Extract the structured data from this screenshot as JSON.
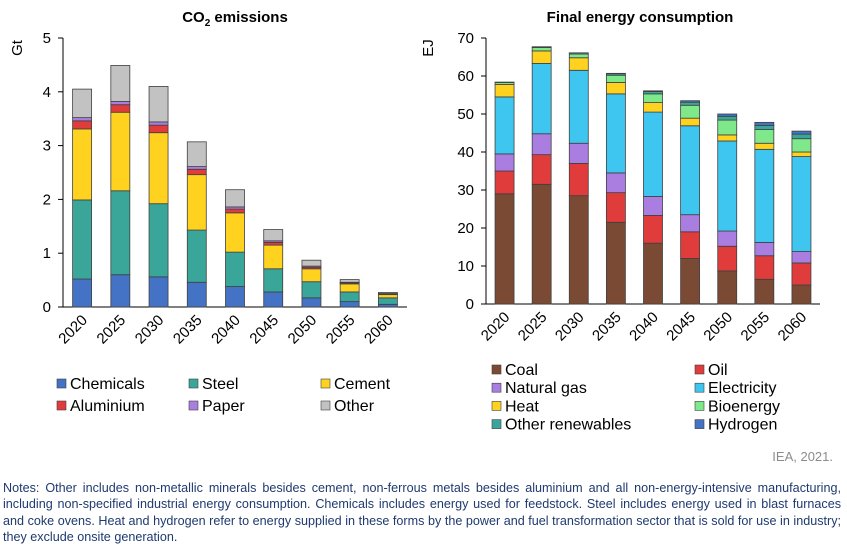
{
  "chart_data": [
    {
      "type": "bar",
      "stacked": true,
      "title": "CO",
      "title_subscript": "2",
      "title_suffix": " emissions",
      "ylabel": "Gt",
      "ylim": [
        0,
        5
      ],
      "yticks": [
        0,
        1,
        2,
        3,
        4,
        5
      ],
      "categories": [
        "2020",
        "2025",
        "2030",
        "2035",
        "2040",
        "2045",
        "2050",
        "2055",
        "2060"
      ],
      "series": [
        {
          "name": "Chemicals",
          "color": "#4472c4",
          "values": [
            0.52,
            0.6,
            0.56,
            0.46,
            0.38,
            0.28,
            0.17,
            0.1,
            0.05
          ]
        },
        {
          "name": "Steel",
          "color": "#3aa69a",
          "values": [
            1.47,
            1.56,
            1.36,
            0.97,
            0.64,
            0.43,
            0.3,
            0.18,
            0.12
          ]
        },
        {
          "name": "Cement",
          "color": "#ffd21f",
          "values": [
            1.32,
            1.46,
            1.32,
            1.03,
            0.73,
            0.44,
            0.24,
            0.15,
            0.06
          ]
        },
        {
          "name": "Aluminium",
          "color": "#e03c3c",
          "values": [
            0.15,
            0.14,
            0.14,
            0.1,
            0.07,
            0.05,
            0.03,
            0.02,
            0.01
          ]
        },
        {
          "name": "Paper",
          "color": "#a97ee0",
          "values": [
            0.06,
            0.06,
            0.06,
            0.05,
            0.04,
            0.03,
            0.02,
            0.01,
            0.01
          ]
        },
        {
          "name": "Other",
          "color": "#c2c2c2",
          "values": [
            0.53,
            0.67,
            0.66,
            0.46,
            0.32,
            0.21,
            0.11,
            0.05,
            0.02
          ]
        }
      ],
      "legend_columns": 3,
      "legend_order": [
        "Chemicals",
        "Steel",
        "Cement",
        "Aluminium",
        "Paper",
        "Other"
      ]
    },
    {
      "type": "bar",
      "stacked": true,
      "title": "Final energy consumption",
      "ylabel": "EJ",
      "ylim": [
        0,
        70
      ],
      "yticks": [
        0,
        10,
        20,
        30,
        40,
        50,
        60,
        70
      ],
      "categories": [
        "2020",
        "2025",
        "2030",
        "2035",
        "2040",
        "2045",
        "2050",
        "2055",
        "2060"
      ],
      "series": [
        {
          "name": "Coal",
          "color": "#7b4a34",
          "values": [
            29.0,
            31.5,
            28.5,
            21.5,
            16.0,
            12.0,
            8.7,
            6.5,
            5.0
          ]
        },
        {
          "name": "Oil",
          "color": "#e03c3c",
          "values": [
            6.0,
            7.8,
            8.5,
            7.8,
            7.3,
            7.0,
            6.5,
            6.2,
            5.8
          ]
        },
        {
          "name": "Natural gas",
          "color": "#a97ee0",
          "values": [
            4.5,
            5.5,
            5.3,
            5.2,
            5.0,
            4.5,
            4.0,
            3.5,
            3.0
          ]
        },
        {
          "name": "Electricity",
          "color": "#3fc6f0",
          "values": [
            15.0,
            18.5,
            19.2,
            20.8,
            22.2,
            23.4,
            23.7,
            24.5,
            25.0
          ]
        },
        {
          "name": "Heat",
          "color": "#ffd21f",
          "values": [
            3.3,
            3.3,
            3.3,
            3.0,
            2.5,
            2.0,
            1.6,
            1.6,
            1.2
          ]
        },
        {
          "name": "Bioenergy",
          "color": "#7ee88a",
          "values": [
            0.5,
            0.9,
            1.0,
            1.9,
            2.3,
            3.4,
            3.9,
            3.6,
            3.5
          ]
        },
        {
          "name": "Other renewables",
          "color": "#3aa69a",
          "values": [
            0.1,
            0.2,
            0.3,
            0.4,
            0.6,
            0.8,
            1.0,
            1.1,
            1.2
          ]
        },
        {
          "name": "Hydrogen",
          "color": "#4472c4",
          "values": [
            0.0,
            0.0,
            0.0,
            0.1,
            0.2,
            0.4,
            0.6,
            0.8,
            0.8
          ]
        }
      ],
      "legend_columns": 2,
      "legend_order": [
        "Coal",
        "Oil",
        "Natural gas",
        "Electricity",
        "Heat",
        "Bioenergy",
        "Other renewables",
        "Hydrogen"
      ]
    }
  ],
  "source": "IEA, 2021.",
  "notes": "Notes: Other includes non-metallic minerals besides cement, non-ferrous metals besides aluminium and all non-energy-intensive manufacturing, including non-specified industrial energy consumption. Chemicals includes energy used for feedstock. Steel includes energy used in blast furnaces and coke ovens. Heat and hydrogen refer to energy supplied in these forms by the power and fuel transformation sector that is sold for use in industry; they exclude onsite generation."
}
